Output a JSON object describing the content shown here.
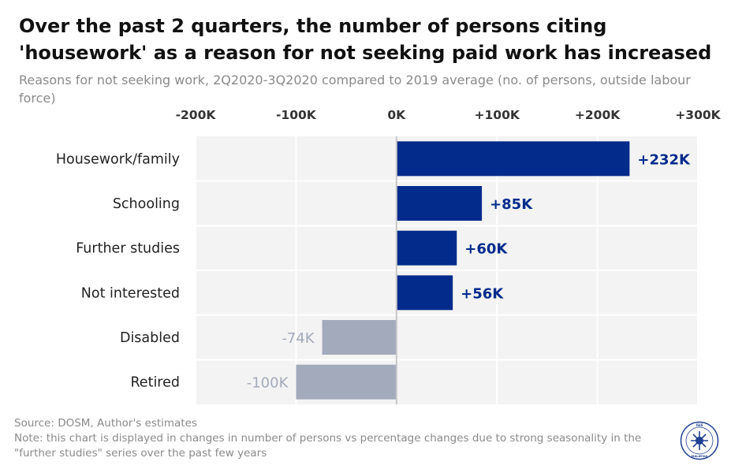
{
  "header": {
    "title": "Over the past 2 quarters, the number of persons citing 'housework' as a reason for not seeking paid work has increased",
    "subtitle": "Reasons for not seeking work, 2Q2020-3Q2020 compared to 2019 average (no. of persons, outside labour force)"
  },
  "chart_data": {
    "type": "bar",
    "orientation": "horizontal",
    "categories": [
      "Housework/family",
      "Schooling",
      "Further studies",
      "Not interested",
      "Disabled",
      "Retired"
    ],
    "values": [
      232000,
      85000,
      60000,
      56000,
      -74000,
      -100000
    ],
    "data_labels": [
      "+232K",
      "+85K",
      "+60K",
      "+56K",
      "-74K",
      "-100K"
    ],
    "xlim": [
      -200000,
      300000
    ],
    "x_ticks": [
      -200000,
      -100000,
      0,
      100000,
      200000,
      300000
    ],
    "x_tick_labels": [
      "-200K",
      "-100K",
      "0K",
      "+100K",
      "+200K",
      "+300K"
    ],
    "x_axis_position": "top",
    "grid": true,
    "colors": {
      "positive": "#022b8b",
      "negative": "#a3aabb",
      "positive_label": "#022b8b",
      "negative_label": "#a3aabb",
      "plot_background": "#f3f3f3",
      "zero_line": "#c8c8c8"
    }
  },
  "footer": {
    "source": "Source: DOSM, Author's estimates",
    "note": "Note: this chart is displayed in changes in number of persons vs percentage changes due to strong seasonality in the \"further studies\" series over the past few years"
  },
  "logo": {
    "top_text": "ISIS",
    "bottom_text": "MALAYSIA",
    "color": "#1f3f8f"
  }
}
